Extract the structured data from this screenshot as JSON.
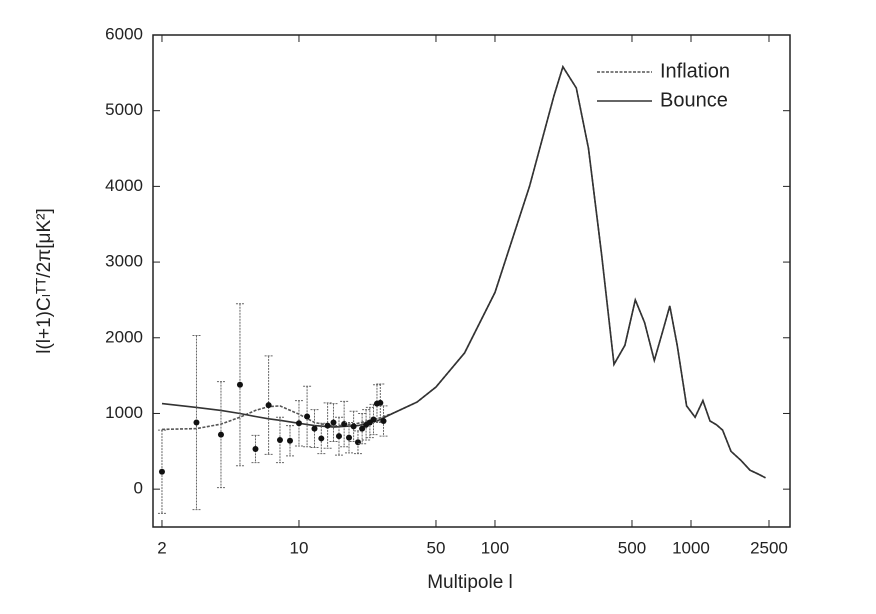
{
  "chart_data": {
    "type": "line",
    "x_label": "Multipole l",
    "y_label": "l(l+1)Cₗᵀᵀ/2π[μK²]",
    "x_scale": "log",
    "legend": "upper right",
    "xlim": [
      1.8,
      3200
    ],
    "xticks": [
      2,
      10,
      50,
      100,
      500,
      1000,
      2500
    ],
    "ylim": [
      -500,
      6000
    ],
    "yticks": [
      0,
      1000,
      2000,
      3000,
      4000,
      5000,
      6000
    ],
    "x": [
      2,
      3,
      4,
      5,
      6,
      7,
      8,
      10,
      12,
      15,
      20,
      25,
      30,
      40,
      50,
      70,
      100,
      150,
      200,
      222,
      260,
      300,
      350,
      405,
      460,
      520,
      580,
      650,
      720,
      780,
      850,
      950,
      1050,
      1150,
      1250,
      1350,
      1450,
      1600,
      1800,
      2000,
      2200,
      2400
    ],
    "series": [
      {
        "name": "Inflation",
        "color": "#555555",
        "dashed": true,
        "values": [
          790,
          800,
          860,
          950,
          1040,
          1090,
          1100,
          990,
          880,
          830,
          870,
          930,
          1000,
          1150,
          1350,
          1800,
          2600,
          4000,
          5200,
          5580,
          5300,
          4500,
          3100,
          1650,
          1900,
          2500,
          2200,
          1700,
          2100,
          2420,
          1900,
          1100,
          950,
          1170,
          900,
          850,
          780,
          500,
          380,
          250,
          200,
          150
        ]
      },
      {
        "name": "Bounce",
        "color": "#333333",
        "dashed": false,
        "values": [
          1130,
          1080,
          1040,
          1000,
          960,
          930,
          910,
          870,
          840,
          820,
          840,
          900,
          1000,
          1150,
          1350,
          1800,
          2600,
          4000,
          5200,
          5580,
          5300,
          4500,
          3100,
          1650,
          1900,
          2500,
          2200,
          1700,
          2100,
          2420,
          1900,
          1100,
          950,
          1170,
          900,
          850,
          780,
          500,
          380,
          250,
          200,
          150
        ]
      }
    ],
    "points": {
      "color": "#111111",
      "x": [
        2,
        3,
        4,
        5,
        6,
        7,
        8,
        9,
        10,
        11,
        12,
        13,
        14,
        15,
        16,
        17,
        18,
        19,
        20,
        21,
        22,
        23,
        24,
        25,
        26,
        27
      ],
      "values": [
        230,
        880,
        720,
        1380,
        530,
        1110,
        650,
        640,
        870,
        960,
        800,
        670,
        840,
        880,
        700,
        860,
        680,
        830,
        620,
        800,
        850,
        880,
        920,
        1130,
        1140,
        900
      ],
      "errors": [
        550,
        1150,
        700,
        1070,
        180,
        650,
        300,
        200,
        300,
        400,
        250,
        200,
        300,
        250,
        250,
        300,
        200,
        200,
        150,
        200,
        200,
        200,
        200,
        250,
        250,
        200
      ]
    }
  }
}
